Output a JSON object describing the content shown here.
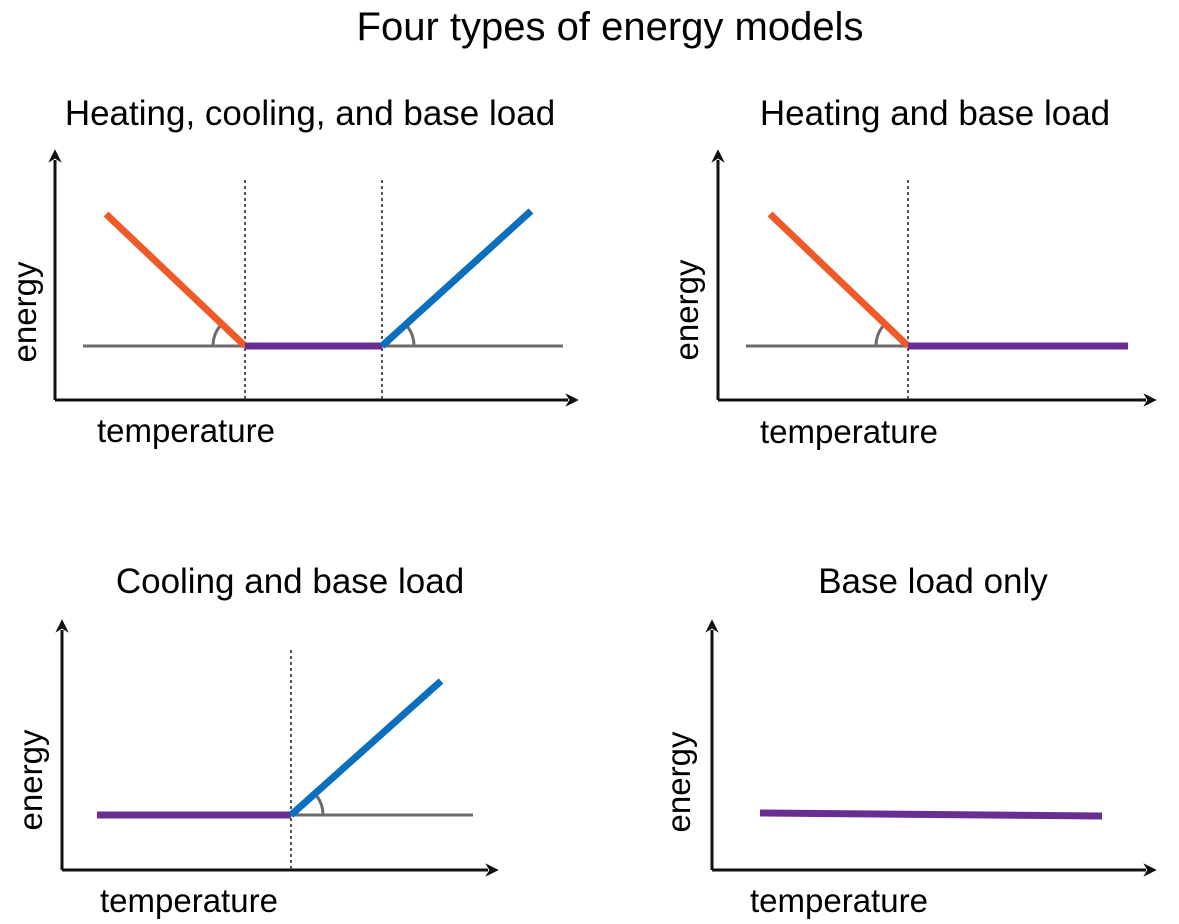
{
  "title": "Four types of energy models",
  "colors": {
    "heating": "#f05a28",
    "cooling": "#0a6fbf",
    "base": "#6a2e93",
    "reference": "#6b6b6b",
    "axis": "#111111"
  },
  "panels": [
    {
      "id": "heating-cooling-base",
      "title": "Heating, cooling, and base load",
      "xlabel": "temperature",
      "ylabel": "energy",
      "components": [
        "heating",
        "base",
        "cooling"
      ]
    },
    {
      "id": "heating-base",
      "title": "Heating and base load",
      "xlabel": "temperature",
      "ylabel": "energy",
      "components": [
        "heating",
        "base"
      ]
    },
    {
      "id": "cooling-base",
      "title": "Cooling and base load",
      "xlabel": "temperature",
      "ylabel": "energy",
      "components": [
        "base",
        "cooling"
      ]
    },
    {
      "id": "base-only",
      "title": "Base load only",
      "xlabel": "temperature",
      "ylabel": "energy",
      "components": [
        "base"
      ]
    }
  ]
}
